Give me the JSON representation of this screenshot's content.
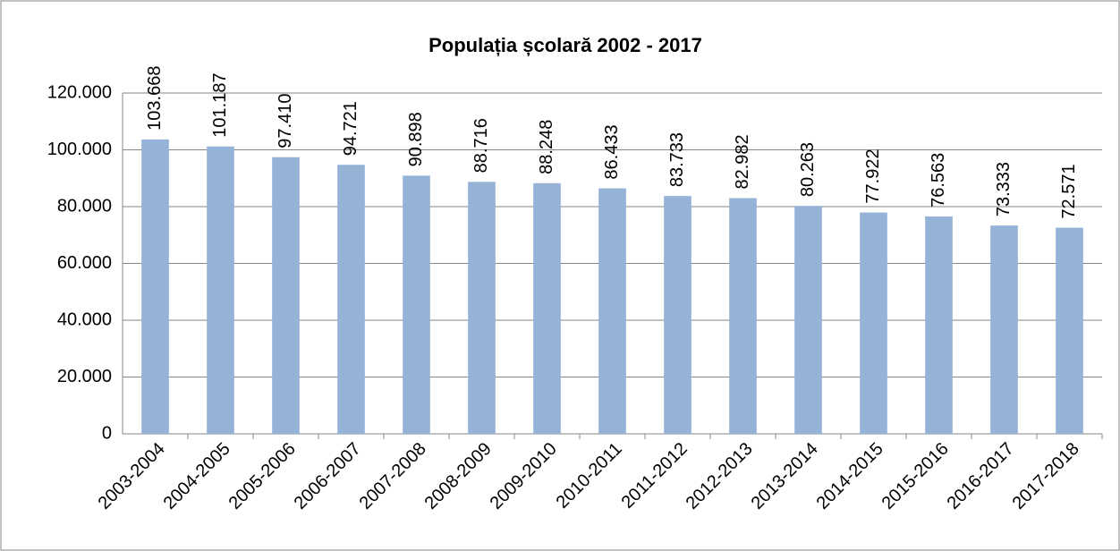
{
  "chart_data": {
    "type": "bar",
    "title": "Populația școlară 2002 - 2017",
    "categories": [
      "2003-2004",
      "2004-2005",
      "2005-2006",
      "2006-2007",
      "2007-2008",
      "2008-2009",
      "2009-2010",
      "2010-2011",
      "2011-2012",
      "2012-2013",
      "2013-2014",
      "2014-2015",
      "2015-2016",
      "2016-2017",
      "2017-2018"
    ],
    "values": [
      103668,
      101187,
      97410,
      94721,
      90898,
      88716,
      88248,
      86433,
      83733,
      82982,
      80263,
      77922,
      76563,
      73333,
      72571
    ],
    "value_labels": [
      "103.668",
      "101.187",
      "97.410",
      "94.721",
      "90.898",
      "88.716",
      "88.248",
      "86.433",
      "83.733",
      "82.982",
      "80.263",
      "77.922",
      "76.563",
      "73.333",
      "72.571"
    ],
    "color": "#95b3d7",
    "ylim": [
      0,
      120000
    ],
    "yticks": [
      0,
      {
        "value": 20000,
        "label": "20.000"
      },
      {
        "value": 40000,
        "label": "40.000"
      },
      {
        "value": 60000,
        "label": "60.000"
      },
      {
        "value": 80000,
        "label": "80.000"
      },
      {
        "value": 100000,
        "label": "100.000"
      },
      {
        "value": 120000,
        "label": "120.000"
      }
    ],
    "grid": true
  }
}
